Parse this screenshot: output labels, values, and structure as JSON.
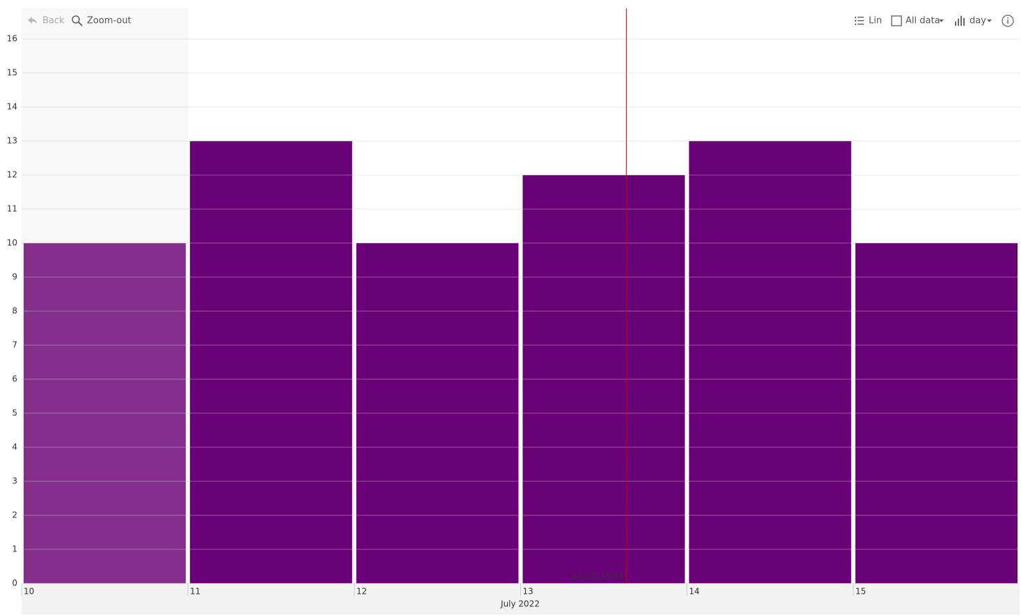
{
  "toolbar": {
    "back": "Back",
    "zoom_out": "Zoom-out",
    "scale": "Lin",
    "range": "All data",
    "interval": "day"
  },
  "chart_data": {
    "type": "bar",
    "x": [
      10,
      11,
      12,
      13,
      14,
      15
    ],
    "values": [
      10,
      13,
      10,
      12,
      13,
      10
    ],
    "colors": [
      "#852f8c",
      "#6a0077",
      "#6a0077",
      "#6a0077",
      "#6a0077",
      "#6a0077"
    ],
    "xlim": [
      10,
      16
    ],
    "xticks": [
      10,
      11,
      12,
      13,
      14,
      15
    ],
    "ylim": [
      0,
      16.9
    ],
    "yticks": [
      0,
      1,
      2,
      3,
      4,
      5,
      6,
      7,
      8,
      9,
      10,
      11,
      12,
      13,
      14,
      15,
      16
    ],
    "xlabel": "July 2022",
    "grid": true,
    "marker": {
      "x": 13.636,
      "label": "Jul 13, 15:16",
      "color": "#d40000"
    }
  }
}
